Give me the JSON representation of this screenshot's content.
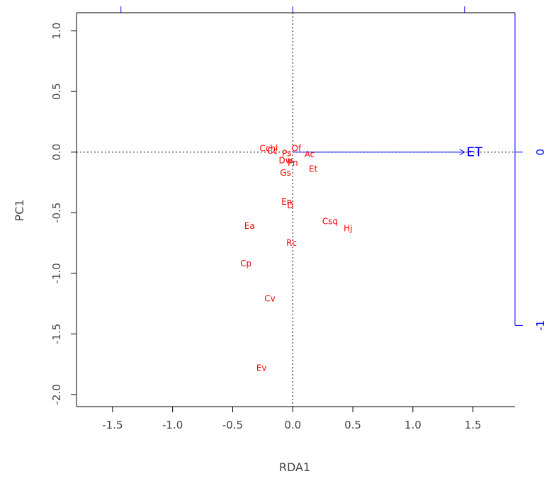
{
  "chart_data": {
    "type": "scatter",
    "title": "",
    "xlabel": "RDA1",
    "ylabel": "PC1",
    "xlim": [
      -1.8,
      1.85
    ],
    "ylim": [
      -2.1,
      1.15
    ],
    "x_ticks": [
      "-1.5",
      "-1.0",
      "-0.5",
      "0.0",
      "0.5",
      "1.0",
      "1.5"
    ],
    "y_ticks": [
      "1.0",
      "0.5",
      "0.0",
      "-0.5",
      "-1.0",
      "-1.5",
      "-2.0"
    ],
    "points": [
      {
        "label": "Cchl",
        "x": -0.2,
        "y": 0.03
      },
      {
        "label": "Cc",
        "x": -0.17,
        "y": 0.01
      },
      {
        "label": "Of",
        "x": 0.03,
        "y": 0.03
      },
      {
        "label": "Ps",
        "x": -0.05,
        "y": -0.01
      },
      {
        "label": "Ac",
        "x": 0.14,
        "y": -0.02
      },
      {
        "label": "Dw",
        "x": -0.06,
        "y": -0.07
      },
      {
        "label": "Pn",
        "x": 0.0,
        "y": -0.09
      },
      {
        "label": "Gs",
        "x": -0.06,
        "y": -0.17
      },
      {
        "label": "Et",
        "x": 0.17,
        "y": -0.14
      },
      {
        "label": "En",
        "x": -0.05,
        "y": -0.41
      },
      {
        "label": "D",
        "x": -0.02,
        "y": -0.44
      },
      {
        "label": "Csq",
        "x": 0.31,
        "y": -0.57
      },
      {
        "label": "Hj",
        "x": 0.46,
        "y": -0.63
      },
      {
        "label": "Ea",
        "x": -0.36,
        "y": -0.61
      },
      {
        "label": "Rc",
        "x": -0.01,
        "y": -0.75
      },
      {
        "label": "Cp",
        "x": -0.39,
        "y": -0.92
      },
      {
        "label": "Cv",
        "x": -0.19,
        "y": -1.21
      },
      {
        "label": "Ev",
        "x": -0.26,
        "y": -1.78
      }
    ],
    "biplot_arrows": [
      {
        "label": "ET",
        "x0": 0.0,
        "y0": 0.0,
        "x1": 1.43,
        "y1": 0.0
      }
    ],
    "secondary_axes": {
      "top_ticks_x": [
        -1.43,
        0.0,
        1.43
      ],
      "right_ticks": [
        {
          "label": "0",
          "y": 0.0
        },
        {
          "label": "-1",
          "y": -1.43
        }
      ]
    },
    "colors": {
      "species": "#ff0000",
      "biplot": "#0000ff",
      "frame": "#000000",
      "text": "#444444"
    }
  }
}
